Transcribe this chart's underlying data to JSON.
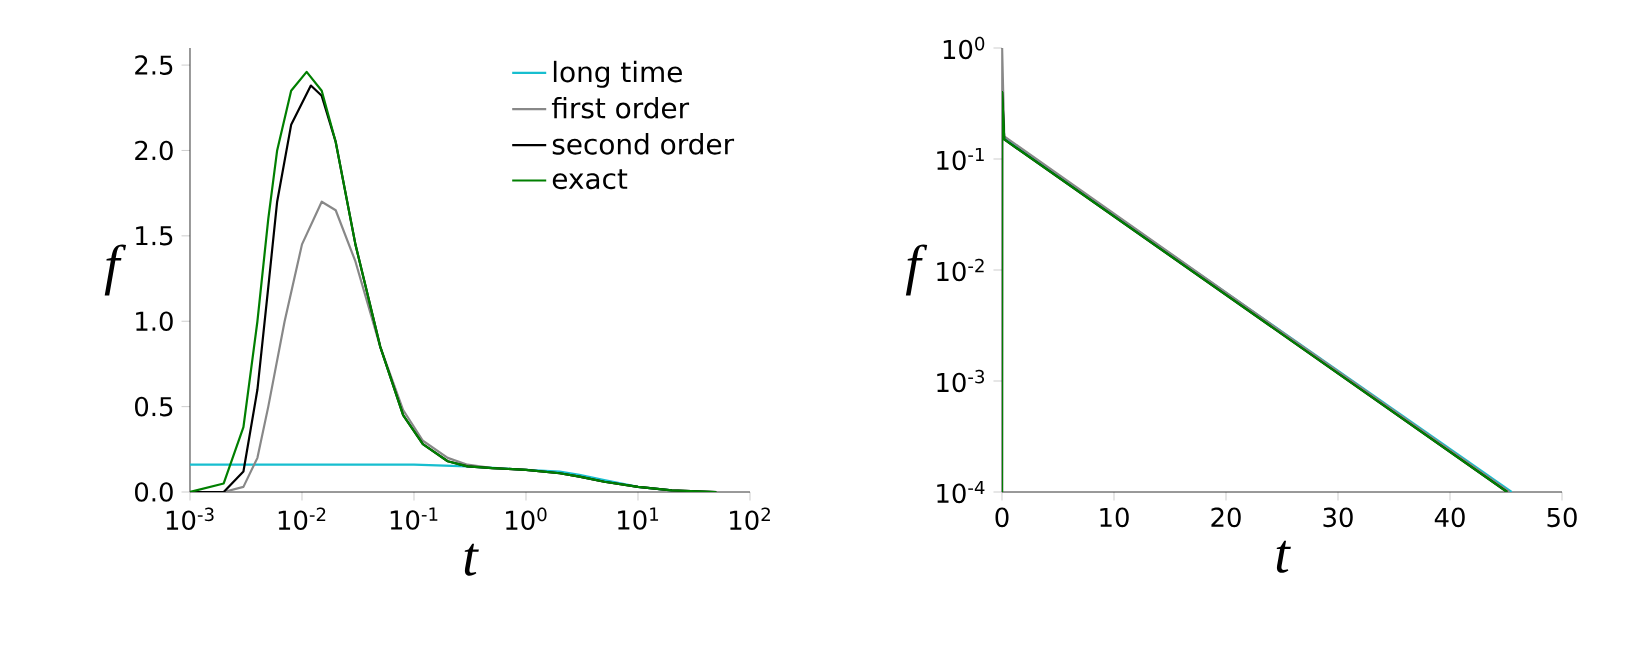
{
  "chart_data": [
    {
      "type": "line",
      "xlabel": "t",
      "ylabel": "f",
      "log": "x",
      "legend": "top right",
      "marker": "none",
      "xlim": [
        0.001,
        100
      ],
      "ylim": [
        0,
        2.6
      ],
      "xticks": [
        {
          "value": 0.001,
          "label": "10$^{-3}$"
        },
        {
          "value": 0.01,
          "label": "10$^{-2}$"
        },
        {
          "value": 0.1,
          "label": "10$^{-1}$"
        },
        {
          "value": 1,
          "label": "10$^{0}$"
        },
        {
          "value": 10,
          "label": "10$^{1}$"
        },
        {
          "value": 100,
          "label": "10$^{2}$"
        }
      ],
      "yticks": [
        {
          "value": 0,
          "label": "0.0"
        },
        {
          "value": 0.5,
          "label": "0.5"
        },
        {
          "value": 1,
          "label": "1.0"
        },
        {
          "value": 1.5,
          "label": "1.5"
        },
        {
          "value": 2,
          "label": "2.0"
        },
        {
          "value": 2.5,
          "label": "2.5"
        }
      ],
      "series": [
        {
          "name": "long time",
          "color": "#17becf",
          "x": [
            0.001,
            0.01,
            0.1,
            0.3,
            1,
            2,
            3,
            5,
            10,
            20
          ],
          "values": [
            0.16,
            0.16,
            0.16,
            0.15,
            0.13,
            0.12,
            0.1,
            0.07,
            0.03,
            0.01
          ]
        },
        {
          "name": "first order",
          "color": "#888888",
          "x": [
            0.001,
            0.002,
            0.003,
            0.004,
            0.005,
            0.007,
            0.01,
            0.015,
            0.02,
            0.03,
            0.05,
            0.08,
            0.12,
            0.2,
            0.3,
            0.5,
            1,
            2,
            3,
            5,
            10,
            20,
            50
          ],
          "values": [
            0,
            0,
            0.03,
            0.2,
            0.5,
            1.0,
            1.45,
            1.7,
            1.65,
            1.35,
            0.85,
            0.48,
            0.3,
            0.2,
            0.16,
            0.14,
            0.13,
            0.11,
            0.09,
            0.06,
            0.03,
            0.01,
            0
          ]
        },
        {
          "name": "second order",
          "color": "#000000",
          "x": [
            0.001,
            0.002,
            0.003,
            0.004,
            0.005,
            0.006,
            0.008,
            0.012,
            0.015,
            0.02,
            0.03,
            0.05,
            0.08,
            0.12,
            0.2,
            0.3,
            0.5,
            1,
            2,
            3,
            5,
            10,
            20,
            50
          ],
          "values": [
            0,
            0,
            0.12,
            0.6,
            1.2,
            1.7,
            2.15,
            2.38,
            2.32,
            2.05,
            1.45,
            0.85,
            0.45,
            0.28,
            0.18,
            0.15,
            0.14,
            0.13,
            0.11,
            0.09,
            0.06,
            0.03,
            0.01,
            0
          ]
        },
        {
          "name": "exact",
          "color": "#007f00",
          "x": [
            0.001,
            0.002,
            0.003,
            0.004,
            0.005,
            0.006,
            0.008,
            0.011,
            0.015,
            0.02,
            0.03,
            0.05,
            0.08,
            0.12,
            0.2,
            0.3,
            0.5,
            1,
            2,
            3,
            5,
            10,
            20,
            50
          ],
          "values": [
            0,
            0.05,
            0.38,
            1.0,
            1.6,
            2.0,
            2.35,
            2.46,
            2.35,
            2.05,
            1.45,
            0.85,
            0.45,
            0.28,
            0.18,
            0.15,
            0.14,
            0.13,
            0.11,
            0.09,
            0.06,
            0.03,
            0.01,
            0
          ]
        }
      ]
    },
    {
      "type": "line",
      "xlabel": "t",
      "ylabel": "f",
      "log": "y",
      "marker": "none",
      "xlim": [
        0,
        50
      ],
      "ylim": [
        0.0001,
        1
      ],
      "xticks": [
        0,
        10,
        20,
        30,
        40,
        50
      ],
      "yticks": [
        {
          "value": 0.0001,
          "label": "10$^{-4}$"
        },
        {
          "value": 0.001,
          "label": "10$^{-3}$"
        },
        {
          "value": 0.01,
          "label": "10$^{-2}$"
        },
        {
          "value": 0.1,
          "label": "10$^{-1}$"
        },
        {
          "value": 1,
          "label": "10$^{0}$"
        }
      ],
      "series": [
        {
          "color": "#17becf",
          "x": [
            0,
            45.5
          ],
          "values": [
            0.16,
            0.0001
          ]
        },
        {
          "color": "#888888",
          "x": [
            0,
            0.01,
            0.2,
            45.3
          ],
          "values": [
            0.0001,
            1,
            0.16,
            0.0001
          ]
        },
        {
          "color": "#000000",
          "x": [
            0,
            0.01,
            0.2,
            45.1
          ],
          "values": [
            0.0001,
            0.4,
            0.15,
            0.0001
          ]
        },
        {
          "color": "#007f00",
          "x": [
            0,
            0.01,
            0.2,
            45.1
          ],
          "values": [
            0.0001,
            0.4,
            0.15,
            0.0001
          ]
        }
      ]
    }
  ]
}
